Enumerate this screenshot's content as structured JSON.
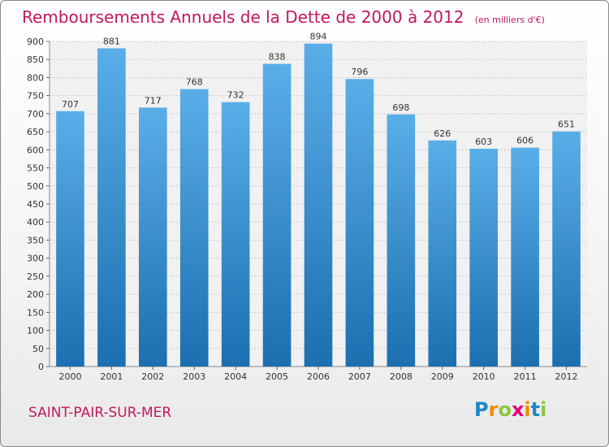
{
  "header": {
    "title": "Remboursements Annuels de la Dette de 2000 à 2012",
    "unit": "(en milliers d'€)"
  },
  "footer": {
    "commune": "SAINT-PAIR-SUR-MER",
    "logo": {
      "text": "Proxiti",
      "letters": [
        "P",
        "r",
        "o",
        "x",
        "i",
        "t",
        "i"
      ],
      "colors": [
        "#1e88c8",
        "#f28c00",
        "#8dc63f",
        "#e2007a",
        "#f28c00",
        "#1e88c8",
        "#8dc63f"
      ]
    }
  },
  "colors": {
    "title": "#c2185b",
    "bar_top": "#5aaee8",
    "bar_bottom": "#1c6fb0"
  },
  "chart_data": {
    "type": "bar",
    "title": "Remboursements Annuels de la Dette de 2000 à 2012",
    "categories": [
      "2000",
      "2001",
      "2002",
      "2003",
      "2004",
      "2005",
      "2006",
      "2007",
      "2008",
      "2009",
      "2010",
      "2011",
      "2012"
    ],
    "values": [
      707,
      881,
      717,
      768,
      732,
      838,
      894,
      796,
      698,
      626,
      603,
      606,
      651
    ],
    "ylim": [
      0,
      900
    ],
    "yticks": [
      0,
      50,
      100,
      150,
      200,
      250,
      300,
      350,
      400,
      450,
      500,
      550,
      600,
      650,
      700,
      750,
      800,
      850,
      900
    ],
    "grid": true
  }
}
